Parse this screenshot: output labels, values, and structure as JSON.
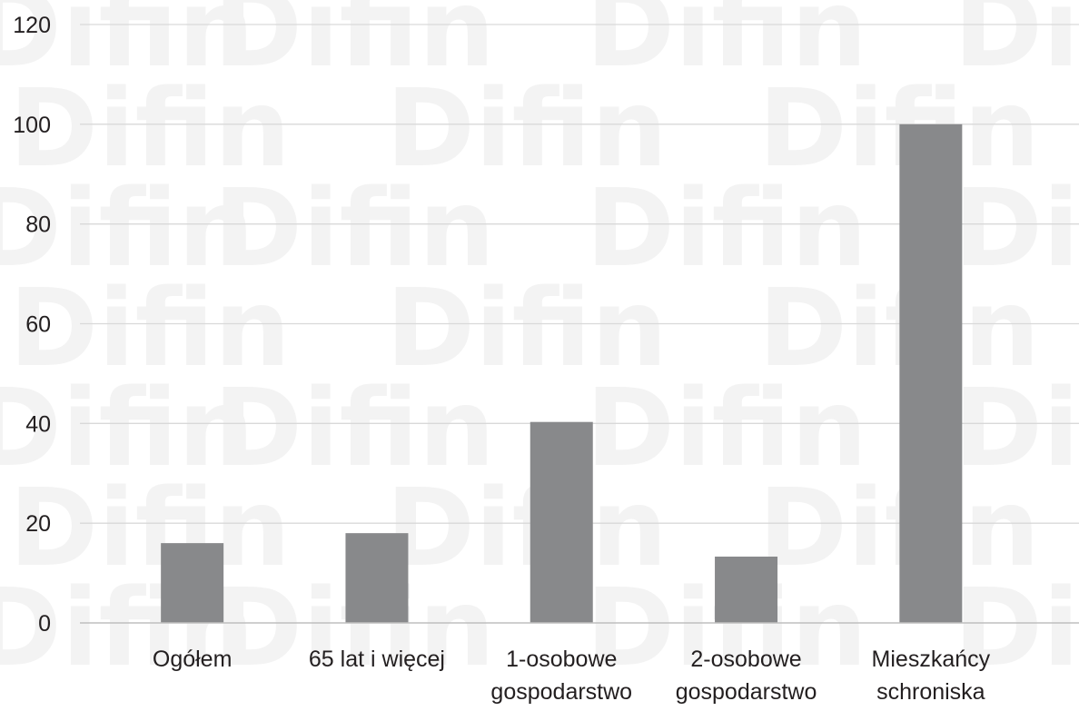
{
  "watermark": "Difin",
  "chart_data": {
    "type": "bar",
    "title": "",
    "xlabel": "",
    "ylabel": "",
    "categories": [
      [
        "Ogółem"
      ],
      [
        "65 lat i więcej"
      ],
      [
        "1-osobowe",
        "gospodarstwo"
      ],
      [
        "2-osobowe",
        "gospodarstwo"
      ],
      [
        "Mieszkańcy",
        "schroniska"
      ]
    ],
    "values": [
      16,
      18,
      40.3,
      13.3,
      100
    ],
    "ylim": [
      0,
      120
    ],
    "yticks": [
      "0",
      "20",
      "40",
      "60",
      "80",
      "100",
      "120"
    ],
    "grid": true,
    "bar_color": "#88898b",
    "grid_color": "#d9d9d9",
    "axis_color": "#bfbfbf"
  }
}
